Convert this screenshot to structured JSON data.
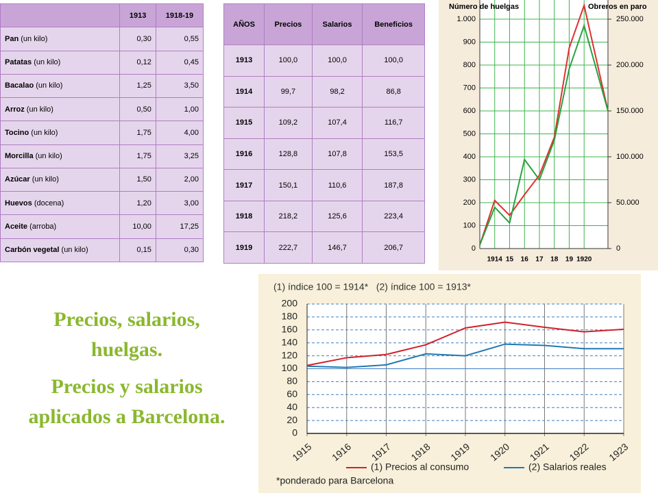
{
  "tables": [
    {
      "headers": [
        "1913",
        "1918-19"
      ],
      "rows": [
        {
          "item": "Pan",
          "unit": "(un kilo)",
          "values": [
            "0,30",
            "0,55"
          ]
        },
        {
          "item": "Patatas",
          "unit": "(un kilo)",
          "values": [
            "0,12",
            "0,45"
          ]
        },
        {
          "item": "Bacalao",
          "unit": "(un kilo)",
          "values": [
            "1,25",
            "3,50"
          ]
        },
        {
          "item": "Arroz",
          "unit": "(un kilo)",
          "values": [
            "0,50",
            "1,00"
          ]
        },
        {
          "item": "Tocino",
          "unit": "(un kilo)",
          "values": [
            "1,75",
            "4,00"
          ]
        },
        {
          "item": "Morcilla",
          "unit": "(un kilo)",
          "values": [
            "1,75",
            "3,25"
          ]
        },
        {
          "item": "Azúcar",
          "unit": "(un kilo)",
          "values": [
            "1,50",
            "2,00"
          ]
        },
        {
          "item": "Huevos",
          "unit": "(docena)",
          "values": [
            "1,20",
            "3,00"
          ]
        },
        {
          "item": "Aceite",
          "unit": "(arroba)",
          "values": [
            "10,00",
            "17,25"
          ]
        },
        {
          "item": "Carbón vegetal",
          "unit": "(un kilo)",
          "values": [
            "0,15",
            "0,30"
          ]
        }
      ]
    },
    {
      "headers": [
        "AÑOS",
        "Precios",
        "Salarios",
        "Beneficios"
      ],
      "rows": [
        [
          "1913",
          "100,0",
          "100,0",
          "100,0"
        ],
        [
          "1914",
          "99,7",
          "98,2",
          "86,8"
        ],
        [
          "1915",
          "109,2",
          "107,4",
          "116,7"
        ],
        [
          "1916",
          "128,8",
          "107,8",
          "153,5"
        ],
        [
          "1917",
          "150,1",
          "110,6",
          "187,8"
        ],
        [
          "1918",
          "218,2",
          "125,6",
          "223,4"
        ],
        [
          "1919",
          "222,7",
          "146,7",
          "206,7"
        ]
      ]
    }
  ],
  "caption": [
    "Precios, salarios, huelgas.",
    "Precios y salarios aplicados a Barcelona."
  ],
  "chart_data": [
    {
      "type": "line",
      "y_label": "Número de huelgas",
      "y2_label": "Obreros en paro",
      "x": [
        1913,
        1914,
        1915,
        1916,
        1917,
        1918,
        1919,
        1920,
        1921.6
      ],
      "xlim": [
        1913,
        1921.6
      ],
      "xticks": [
        {
          "value": 1914,
          "label": "1914"
        },
        {
          "value": 1915,
          "label": "15"
        },
        {
          "value": 1916,
          "label": "16"
        },
        {
          "value": 1917,
          "label": "17"
        },
        {
          "value": 1918,
          "label": "18"
        },
        {
          "value": 1919,
          "label": "19"
        },
        {
          "value": 1920,
          "label": "1920"
        }
      ],
      "ylim": [
        0,
        1000
      ],
      "yticks": [
        0,
        100,
        200,
        300,
        400,
        500,
        600,
        700,
        800,
        900,
        {
          "value": 1000,
          "label": "1.000"
        }
      ],
      "y2lim": [
        0,
        250000
      ],
      "y2ticks": [
        0,
        {
          "value": 50000,
          "label": "50.000"
        },
        {
          "value": 100000,
          "label": "100.000"
        },
        {
          "value": 150000,
          "label": "150.000"
        },
        {
          "value": 200000,
          "label": "200.000"
        },
        {
          "value": 250000,
          "label": "250.000"
        }
      ],
      "grid": true,
      "grid_color": "#3cb44b",
      "series": [
        {
          "color": "#e03030",
          "values": [
            15,
            210,
            145,
            235,
            320,
            485,
            875,
            1060,
            600
          ]
        },
        {
          "color": "#2aa040",
          "axis": "y2",
          "values": [
            4000,
            45000,
            28000,
            97000,
            75000,
            118000,
            196000,
            243000,
            150000
          ]
        }
      ]
    },
    {
      "type": "line",
      "subtitle": "(1) índice 100 = 1914*   (2) índice 100 = 1913*",
      "footnote": "*ponderado para Barcelona",
      "categories": [
        "1915",
        "1916",
        "1917",
        "1918",
        "1919",
        "1920",
        "1921",
        "1922",
        "1923"
      ],
      "ylim": [
        0,
        200
      ],
      "yticks": [
        0,
        20,
        40,
        60,
        80,
        100,
        120,
        140,
        160,
        180,
        200
      ],
      "grid": true,
      "series": [
        {
          "name": "(1) Precios al consumo",
          "color": "#d0202a",
          "values": [
            105,
            117,
            122,
            137,
            163,
            172,
            164,
            157,
            161
          ]
        },
        {
          "name": "(2) Salarios reales",
          "color": "#1f78b4",
          "values": [
            104,
            102,
            106,
            123,
            120,
            138,
            136,
            131,
            131
          ]
        }
      ]
    }
  ]
}
